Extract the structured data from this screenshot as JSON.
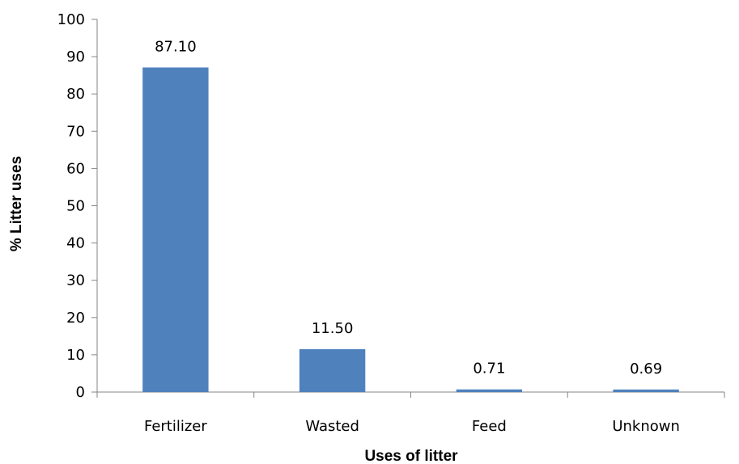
{
  "chart_data": {
    "type": "bar",
    "categories": [
      "Fertilizer",
      "Wasted",
      "Feed",
      "Unknown"
    ],
    "values": [
      87.1,
      11.5,
      0.71,
      0.69
    ],
    "data_labels": [
      "87.10",
      "11.50",
      "0.71",
      "0.69"
    ],
    "xlabel": "Uses of litter",
    "ylabel": "% Litter uses",
    "ylim": [
      0,
      100
    ],
    "yticks": [
      0,
      10,
      20,
      30,
      40,
      50,
      60,
      70,
      80,
      90,
      100
    ],
    "grid": false,
    "legend": "none",
    "colors": {
      "bar": "#4F81BD",
      "axis": "#868686"
    }
  }
}
